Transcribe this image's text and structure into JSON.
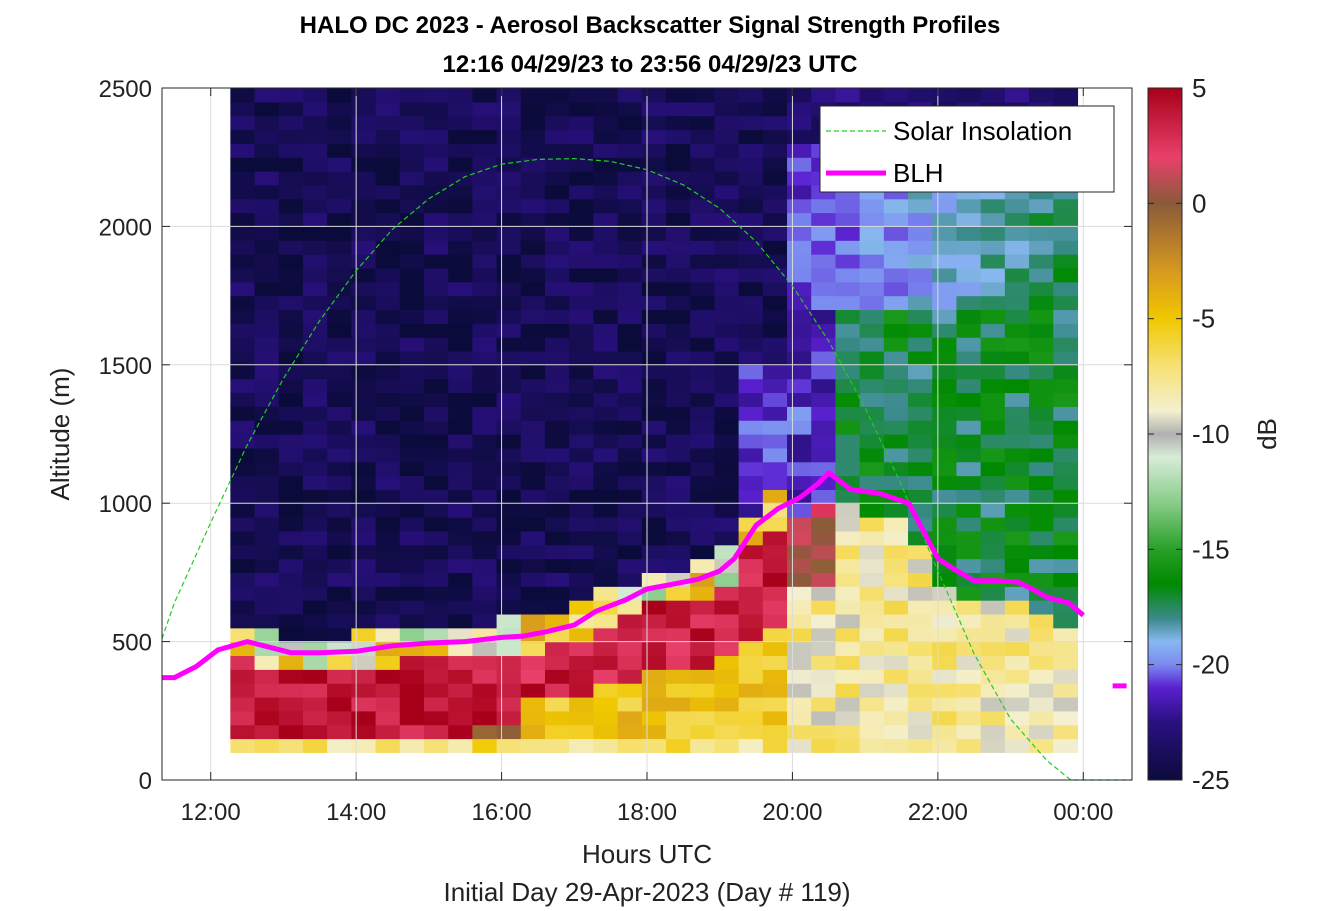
{
  "chart_data": {
    "type": "heatmap",
    "title": "HALO DC 2023 - Aerosol Backscatter Signal Strength Profiles",
    "subtitle": "12:16 04/29/23 to 23:56 04/29/23  UTC",
    "xlabel": "Hours UTC",
    "ylabel": "Altitude (m)",
    "footer": "Initial Day 29-Apr-2023 (Day # 119)",
    "colorbar_label": "dB",
    "xlim": [
      11.33,
      24.67
    ],
    "ylim": [
      0,
      2500
    ],
    "x_ticks": [
      12,
      14,
      16,
      18,
      20,
      22,
      24
    ],
    "x_tick_labels": [
      "12:00",
      "14:00",
      "16:00",
      "18:00",
      "20:00",
      "22:00",
      "00:00"
    ],
    "y_ticks": [
      0,
      500,
      1000,
      1500,
      2000,
      2500
    ],
    "y_tick_labels": [
      "0",
      "500",
      "1000",
      "1500",
      "2000",
      "2500"
    ],
    "color_range": [
      -25,
      5
    ],
    "colorbar_ticks": [
      5,
      0,
      -5,
      -10,
      -15,
      -20,
      -25
    ],
    "colorbar_tick_labels": [
      "5",
      "0",
      "-5",
      "-10",
      "-15",
      "-20",
      "-25"
    ],
    "grid": true,
    "legend_position": "top-right",
    "legend": [
      {
        "name": "Solar Insolation",
        "color": "#22cc22",
        "style": "dashed"
      },
      {
        "name": "BLH",
        "color": "#ff00ff",
        "style": "solid"
      }
    ],
    "colormap": [
      {
        "v": -25,
        "color": "#0b0b3b"
      },
      {
        "v": -22.5,
        "color": "#2a1080"
      },
      {
        "v": -21,
        "color": "#5a20d0"
      },
      {
        "v": -20,
        "color": "#7a8af0"
      },
      {
        "v": -19,
        "color": "#88b8f0"
      },
      {
        "v": -18,
        "color": "#3a8a8a"
      },
      {
        "v": -16.5,
        "color": "#008a00"
      },
      {
        "v": -15,
        "color": "#28a028"
      },
      {
        "v": -13,
        "color": "#88cc88"
      },
      {
        "v": -11,
        "color": "#d8ecd8"
      },
      {
        "v": -10,
        "color": "#b0b0b0"
      },
      {
        "v": -9,
        "color": "#f4f0d0"
      },
      {
        "v": -7,
        "color": "#f6e070"
      },
      {
        "v": -5,
        "color": "#f0c800"
      },
      {
        "v": -3,
        "color": "#d89a20"
      },
      {
        "v": 0,
        "color": "#8a5a3a"
      },
      {
        "v": 2,
        "color": "#e8406a"
      },
      {
        "v": 5,
        "color": "#a8001a"
      }
    ],
    "blh": {
      "name": "BLH",
      "x": [
        11.33,
        11.5,
        11.8,
        12.1,
        12.5,
        12.8,
        13.1,
        13.5,
        14.0,
        14.5,
        15.0,
        15.5,
        16.0,
        16.3,
        16.6,
        17.0,
        17.3,
        17.7,
        18.0,
        18.3,
        18.7,
        19.0,
        19.2,
        19.5,
        19.8,
        20.1,
        20.35,
        20.5,
        20.8,
        21.2,
        21.6,
        21.8,
        22.0,
        22.2,
        22.5,
        22.8,
        23.1,
        23.3,
        23.5,
        23.8,
        24.0
      ],
      "y": [
        370,
        370,
        410,
        470,
        500,
        480,
        460,
        460,
        465,
        485,
        495,
        500,
        515,
        520,
        535,
        560,
        610,
        650,
        690,
        705,
        725,
        755,
        800,
        920,
        980,
        1020,
        1070,
        1110,
        1050,
        1035,
        1000,
        900,
        800,
        765,
        720,
        720,
        715,
        690,
        660,
        640,
        595
      ]
    },
    "solar_insolation": {
      "name": "Solar Insolation",
      "x": [
        11.33,
        11.5,
        12.0,
        12.5,
        13.0,
        13.5,
        14.0,
        14.5,
        15.0,
        15.5,
        16.0,
        16.5,
        17.0,
        17.5,
        18.0,
        18.5,
        19.0,
        19.5,
        20.0,
        20.5,
        21.0,
        21.5,
        22.0,
        22.5,
        23.0,
        23.5,
        23.83,
        24.0,
        24.67
      ],
      "y": [
        510,
        640,
        930,
        1210,
        1450,
        1660,
        1840,
        1990,
        2100,
        2180,
        2225,
        2242,
        2245,
        2235,
        2205,
        2150,
        2065,
        1945,
        1785,
        1585,
        1345,
        1065,
        755,
        455,
        220,
        70,
        0,
        0,
        0
      ]
    },
    "blh_marker": {
      "x": 24.5,
      "y": 340
    },
    "cells": {
      "x_start": 12.27,
      "x_end": 23.92,
      "ncols": 35,
      "y_bins": [
        100,
        150,
        200,
        250,
        300,
        350,
        400,
        450,
        500,
        550,
        600,
        650,
        700,
        750,
        800,
        850,
        900,
        950,
        1000,
        1050,
        1100,
        1150,
        1200,
        1250,
        1300,
        1350,
        1400,
        1450,
        1500,
        1550,
        1600,
        1650,
        1700,
        1750,
        1800,
        1850,
        1900,
        1950,
        2000,
        2050,
        2100,
        2150,
        2200,
        2250,
        2300,
        2350,
        2400,
        2450,
        2500
      ]
    }
  }
}
